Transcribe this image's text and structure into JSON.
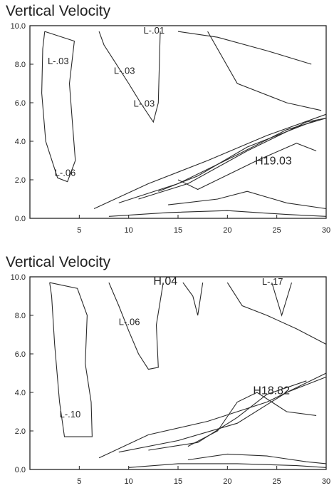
{
  "chart_data": [
    {
      "type": "contour",
      "title": "Vertical Velocity",
      "xlim": [
        0,
        30
      ],
      "ylim": [
        0,
        10
      ],
      "x_ticks": [
        "5",
        "10",
        "15",
        "20",
        "25",
        "30"
      ],
      "y_ticks": [
        "0.0",
        "2.0",
        "4.0",
        "6.0",
        "8.0",
        "10.0"
      ],
      "labels": [
        {
          "text": "L-.01",
          "x": 11.5,
          "y": 9.6
        },
        {
          "text": "L-.03",
          "x": 1.8,
          "y": 8.0
        },
        {
          "text": "L-.03",
          "x": 8.5,
          "y": 7.5
        },
        {
          "text": "L-.03",
          "x": 10.5,
          "y": 5.8
        },
        {
          "text": "L-.06",
          "x": 2.5,
          "y": 2.2
        },
        {
          "text": "H19.03",
          "x": 22.8,
          "y": 2.8
        }
      ]
    },
    {
      "type": "contour",
      "title": "Vertical Velocity",
      "xlim": [
        0,
        30
      ],
      "ylim": [
        0,
        10
      ],
      "x_ticks": [
        "5",
        "10",
        "15",
        "20",
        "25",
        "30"
      ],
      "y_ticks": [
        "0.0",
        "2.0",
        "4.0",
        "6.0",
        "8.0",
        "10.0"
      ],
      "labels": [
        {
          "text": "H.04",
          "x": 12.5,
          "y": 9.6
        },
        {
          "text": "L-.17",
          "x": 23.5,
          "y": 9.6
        },
        {
          "text": "L-.06",
          "x": 9.0,
          "y": 7.5
        },
        {
          "text": "L-.10",
          "x": 3.0,
          "y": 2.7
        },
        {
          "text": "H18.82",
          "x": 22.6,
          "y": 3.9
        }
      ]
    }
  ]
}
